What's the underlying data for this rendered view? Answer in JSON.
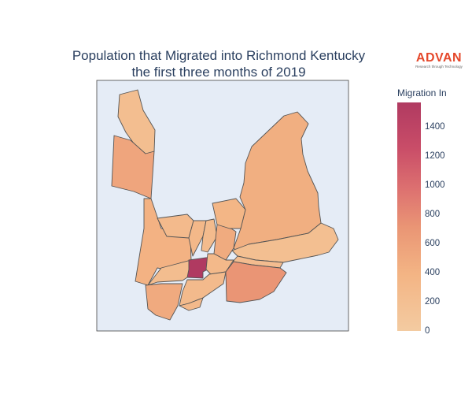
{
  "title": {
    "line1": "Population that Migrated into Richmond Kentucky",
    "line2": "the first three months of 2019"
  },
  "logo": {
    "brand": "ADVAN",
    "tagline": "Research through Technology"
  },
  "colorbar": {
    "title": "Migration In",
    "min": 0,
    "max": 1570,
    "ticks": [
      "0",
      "200",
      "400",
      "600",
      "800",
      "1000",
      "1200",
      "1400"
    ],
    "tick_values": [
      0,
      200,
      400,
      600,
      800,
      1000,
      1200,
      1400
    ],
    "colors": [
      "#f3cba1",
      "#f3b484",
      "#ea9675",
      "#dd7170",
      "#c94d68",
      "#b03a61"
    ]
  },
  "colors": {
    "background": "#e5ecf6",
    "border": "#555555",
    "text": "#2a3f5f"
  },
  "regions": [
    {
      "id": "north-strip",
      "value": 180
    },
    {
      "id": "northwest",
      "value": 470
    },
    {
      "id": "west-central",
      "value": 330
    },
    {
      "id": "northeast-large",
      "value": 370
    },
    {
      "id": "north-central",
      "value": 230
    },
    {
      "id": "center-a",
      "value": 260
    },
    {
      "id": "center-b",
      "value": 220
    },
    {
      "id": "center-c",
      "value": 410
    },
    {
      "id": "center-d",
      "value": 290
    },
    {
      "id": "east-strip",
      "value": 170
    },
    {
      "id": "east-small",
      "value": 200
    },
    {
      "id": "west-small",
      "value": 190
    },
    {
      "id": "downtown",
      "value": 1570
    },
    {
      "id": "downtown-adj",
      "value": 250
    },
    {
      "id": "southeast",
      "value": 640
    },
    {
      "id": "south-central",
      "value": 230
    },
    {
      "id": "southwest",
      "value": 420
    },
    {
      "id": "south-small",
      "value": 240
    }
  ]
}
